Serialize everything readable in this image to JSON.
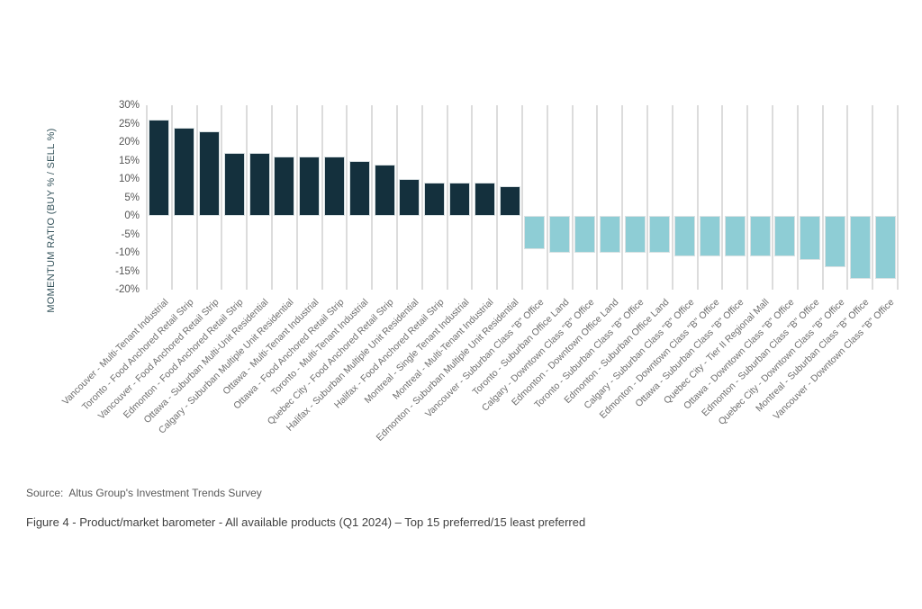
{
  "figure": {
    "source_label": "Source:  Altus Group's Investment Trends Survey",
    "caption": "Figure 4 - Product/market barometer - All available products (Q1 2024) – Top 15 preferred/15 least preferred"
  },
  "colors": {
    "positive_bar": "#14303d",
    "negative_bar": "#8ecdd5",
    "gridline": "#dcdcdc",
    "tick_text": "#545454",
    "category_text": "#6e6e6e",
    "axis_title_text": "#33525a"
  },
  "chart_data": {
    "type": "bar",
    "title": "",
    "xlabel": "",
    "ylabel": "MOMENTUM RATIO (BUY % / SELL %)",
    "ylim": [
      -20,
      30
    ],
    "ytick_step": 5,
    "ytick_labels": [
      "30%",
      "25%",
      "20%",
      "15%",
      "10%",
      "5%",
      "0%",
      "-5%",
      "-10%",
      "-15%",
      "-20%"
    ],
    "grid": "vertical-only",
    "legend_position": "none",
    "categories": [
      "Vancouver - Multi-Tenant Industrial",
      "Toronto - Food Anchored Retail Strip",
      "Vancouver - Food Anchored Retail Strip",
      "Edmonton - Food Anchored Retail Strip",
      "Ottawa - Suburban Multi-Unit Residential",
      "Calgary - Suburban Multiple Unit Residential",
      "Ottawa - Multi-Tenant Industrial",
      "Ottawa - Food Anchored Retail Strip",
      "Toronto - Multi-Tenant Industrial",
      "Quebec City - Food Anchored Retail Strip",
      "Halifax - Suburban Multiple Unit Residential",
      "Halifax - Food Anchored Retail Strip",
      "Montreal - Single Tenant Industrial",
      "Montreal - Multi-Tenant Industrial",
      "Edmonton - Suburban Multiple Unit Residential",
      "Vancouver - Suburban Class \"B\" Office",
      "Toronto - Suburban Office Land",
      "Calgary - Downtown Class \"B\" Office",
      "Edmonton - Downtown Office Land",
      "Toronto - Suburban Class \"B\" Office",
      "Edmonton - Suburban Office Land",
      "Calgary - Suburban Class \"B\" Office",
      "Edmonton - Downtown Class \"B\" Office",
      "Ottawa - Suburban Class \"B\" Office",
      "Quebec City - Tier II Regional Mall",
      "Ottawa - Downtown Class \"B\" Office",
      "Edmonton - Suburban Class \"B\" Office",
      "Quebec City - Downtown Class \"B\" Office",
      "Montreal - Suburban Class \"B\" Office",
      "Vancouver - Downtown Class \"B\" Office"
    ],
    "values": [
      26,
      24,
      23,
      17,
      17,
      16,
      16,
      16,
      15,
      14,
      10,
      9,
      9,
      9,
      8,
      -9,
      -10,
      -10,
      -10,
      -10,
      -10,
      -11,
      -11,
      -11,
      -11,
      -11,
      -12,
      -14,
      -17,
      -17
    ]
  }
}
